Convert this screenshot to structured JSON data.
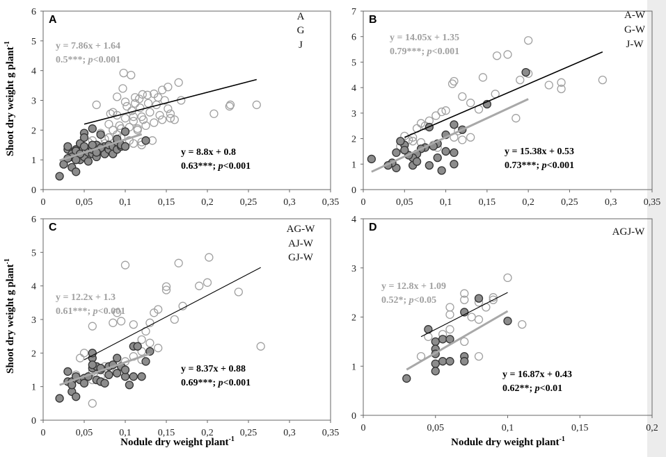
{
  "figure": {
    "y_label": "Shoot dry weight g plant",
    "y_label_sup": "-1",
    "x_label": "Nodule dry weight plant",
    "x_label_sup": "-1"
  },
  "colors": {
    "open_series": "#a0a0a0",
    "filled_series_fill": "#8c8c8c",
    "filled_series_stroke": "#333333",
    "open_fit_line": "#000000",
    "filled_fit_line": "#a8a8a8",
    "gray_text": "#a0a0a0",
    "black_text": "#000000"
  },
  "chart_data": [
    {
      "panel": "A",
      "type": "scatter",
      "legend": [
        "A",
        "G",
        "J"
      ],
      "xlim": [
        0,
        0.35
      ],
      "ylim": [
        0,
        6
      ],
      "x_ticks": [
        0,
        0.05,
        0.1,
        0.15,
        0.2,
        0.25,
        0.3,
        0.35
      ],
      "x_tick_labels": [
        "0",
        "0,05",
        "0,1",
        "0,15",
        "0,2",
        "0,25",
        "0,3",
        "0,35"
      ],
      "y_ticks": [
        0,
        1,
        2,
        3,
        4,
        5,
        6
      ],
      "y_tick_labels": [
        "0",
        "1",
        "2",
        "3",
        "4",
        "5",
        "6"
      ],
      "eq_open": {
        "line1": "y = 7.86x + 1.64",
        "line2_a": "0.5***; ",
        "line2_p": "p",
        "line2_b": "<0.001"
      },
      "eq_filled": {
        "line1": "y = 8.8x + 0.8",
        "line2_a": "0.63***; ",
        "line2_p": "p",
        "line2_b": "<0.001"
      },
      "fit_open": {
        "x": [
          0.05,
          0.26
        ],
        "y": [
          2.2,
          3.7
        ]
      },
      "fit_filled": {
        "x": [
          0.02,
          0.12
        ],
        "y": [
          0.98,
          1.86
        ]
      },
      "series": [
        {
          "name": "open",
          "x": [
            0.098,
            0.107,
            0.112,
            0.097,
            0.1,
            0.117,
            0.121,
            0.09,
            0.127,
            0.135,
            0.145,
            0.14,
            0.152,
            0.165,
            0.108,
            0.118,
            0.128,
            0.138,
            0.148,
            0.142,
            0.155,
            0.155,
            0.13,
            0.12,
            0.11,
            0.1,
            0.09,
            0.085,
            0.08,
            0.085,
            0.095,
            0.105,
            0.115,
            0.125,
            0.135,
            0.145,
            0.168,
            0.152,
            0.16,
            0.102,
            0.112,
            0.122,
            0.11,
            0.093,
            0.082,
            0.208,
            0.228,
            0.26,
            0.227,
            0.09,
            0.08,
            0.07,
            0.065,
            0.06,
            0.055,
            0.075,
            0.085,
            0.1,
            0.11,
            0.12,
            0.133,
            0.075,
            0.068,
            0.06,
            0.05,
            0.045,
            0.04,
            0.055,
            0.065,
            0.115,
            0.12,
            0.095,
            0.105
          ],
          "y": [
            3.92,
            3.85,
            3.1,
            3.4,
            2.95,
            3.05,
            3.2,
            3.12,
            3.18,
            3.22,
            3.35,
            3.1,
            3.45,
            3.6,
            2.65,
            2.75,
            2.9,
            2.85,
            3.0,
            2.5,
            2.55,
            2.4,
            2.6,
            2.45,
            2.3,
            2.4,
            2.5,
            2.6,
            2.2,
            2.0,
            2.05,
            2.1,
            2.0,
            2.15,
            2.25,
            2.35,
            3.0,
            2.72,
            2.35,
            2.8,
            2.9,
            2.35,
            2.45,
            2.15,
            2.55,
            2.55,
            2.85,
            2.85,
            2.8,
            1.85,
            1.75,
            1.9,
            2.85,
            1.65,
            1.6,
            1.7,
            1.55,
            1.45,
            1.55,
            1.6,
            1.65,
            1.55,
            1.45,
            1.4,
            1.3,
            1.2,
            1.1,
            1.35,
            1.5,
            2.05,
            1.5,
            1.75,
            1.65
          ]
        },
        {
          "name": "filled",
          "x": [
            0.02,
            0.025,
            0.03,
            0.03,
            0.035,
            0.035,
            0.04,
            0.04,
            0.045,
            0.045,
            0.05,
            0.05,
            0.055,
            0.055,
            0.06,
            0.06,
            0.06,
            0.065,
            0.065,
            0.07,
            0.07,
            0.075,
            0.075,
            0.08,
            0.08,
            0.085,
            0.085,
            0.09,
            0.09,
            0.095,
            0.095,
            0.1,
            0.1,
            0.04,
            0.05,
            0.045,
            0.035,
            0.03,
            0.06,
            0.07,
            0.125,
            0.09,
            0.05,
            0.065,
            0.04
          ],
          "y": [
            0.45,
            0.85,
            1.35,
            1.45,
            0.75,
            1.2,
            0.6,
            1.35,
            1.0,
            1.55,
            1.1,
            1.9,
            0.95,
            1.25,
            1.2,
            1.35,
            2.05,
            1.1,
            1.5,
            1.3,
            1.85,
            1.2,
            1.45,
            1.35,
            1.5,
            1.2,
            1.45,
            1.35,
            1.6,
            1.45,
            1.5,
            1.45,
            1.95,
            1.3,
            1.45,
            1.2,
            1.1,
            1.05,
            1.5,
            1.4,
            1.65,
            1.7,
            1.75,
            1.25,
            1.0
          ]
        }
      ]
    },
    {
      "panel": "B",
      "type": "scatter",
      "legend": [
        "A-W",
        "G-W",
        "J-W"
      ],
      "xlim": [
        0,
        0.35
      ],
      "ylim": [
        0,
        7
      ],
      "x_ticks": [
        0,
        0.05,
        0.1,
        0.15,
        0.2,
        0.25,
        0.3,
        0.35
      ],
      "x_tick_labels": [
        "0",
        "0,05",
        "0,1",
        "0,15",
        "0,2",
        "0,25",
        "0,3",
        "0,35"
      ],
      "y_ticks": [
        0,
        1,
        2,
        3,
        4,
        5,
        6,
        7
      ],
      "y_tick_labels": [
        "0",
        "1",
        "2",
        "3",
        "4",
        "5",
        "6",
        "7"
      ],
      "eq_open": {
        "line1": "y = 14.05x + 1.35",
        "line2_a": "0.79***; ",
        "line2_p": "p",
        "line2_b": "<0.001"
      },
      "eq_filled": {
        "line1": "y = 15.38x + 0.53",
        "line2_a": "0.73***; ",
        "line2_p": "p",
        "line2_b": "<0.001"
      },
      "fit_open": {
        "x": [
          0.05,
          0.29
        ],
        "y": [
          2.05,
          5.4
        ]
      },
      "fit_filled": {
        "x": [
          0.01,
          0.2
        ],
        "y": [
          0.7,
          3.55
        ]
      },
      "series": [
        {
          "name": "open",
          "x": [
            0.2,
            0.175,
            0.162,
            0.2,
            0.19,
            0.225,
            0.24,
            0.24,
            0.29,
            0.185,
            0.16,
            0.145,
            0.14,
            0.13,
            0.12,
            0.11,
            0.108,
            0.1,
            0.095,
            0.088,
            0.08,
            0.075,
            0.07,
            0.065,
            0.06,
            0.055,
            0.05,
            0.085,
            0.09,
            0.11,
            0.13,
            0.115,
            0.12,
            0.045,
            0.06,
            0.07
          ],
          "y": [
            5.85,
            5.3,
            5.25,
            4.55,
            4.3,
            4.1,
            4.2,
            3.95,
            4.3,
            2.8,
            3.75,
            4.4,
            3.15,
            3.4,
            3.65,
            4.25,
            4.15,
            3.1,
            3.05,
            2.9,
            2.7,
            2.5,
            2.6,
            2.4,
            2.05,
            1.95,
            2.1,
            1.75,
            1.65,
            2.05,
            2.05,
            2.3,
            1.95,
            1.7,
            1.9,
            1.85
          ]
        },
        {
          "name": "filled",
          "x": [
            0.197,
            0.15,
            0.12,
            0.11,
            0.1,
            0.09,
            0.085,
            0.08,
            0.075,
            0.07,
            0.065,
            0.06,
            0.055,
            0.05,
            0.05,
            0.045,
            0.04,
            0.04,
            0.035,
            0.03,
            0.01,
            0.06,
            0.065,
            0.08,
            0.095,
            0.11,
            0.11,
            0.1,
            0.09
          ],
          "y": [
            4.6,
            3.35,
            2.35,
            2.55,
            2.15,
            1.8,
            1.7,
            2.45,
            1.65,
            1.6,
            1.4,
            1.25,
            1.35,
            1.75,
            1.55,
            1.9,
            1.45,
            0.85,
            1.05,
            0.95,
            1.2,
            0.95,
            1.1,
            0.95,
            0.75,
            1.0,
            1.45,
            1.5,
            1.25
          ]
        }
      ]
    },
    {
      "panel": "C",
      "type": "scatter",
      "legend": [
        "AG-W",
        "AJ-W",
        "GJ-W"
      ],
      "xlim": [
        0,
        0.35
      ],
      "ylim": [
        0,
        6
      ],
      "x_ticks": [
        0,
        0.05,
        0.1,
        0.15,
        0.2,
        0.25,
        0.3,
        0.35
      ],
      "x_tick_labels": [
        "0",
        "0,05",
        "0,1",
        "0,15",
        "0,2",
        "0,25",
        "0,3",
        "0,35"
      ],
      "y_ticks": [
        0,
        1,
        2,
        3,
        4,
        5,
        6
      ],
      "y_tick_labels": [
        "0",
        "1",
        "2",
        "3",
        "4",
        "5",
        "6"
      ],
      "eq_open": {
        "line1": "y = 12.2x + 1.3",
        "line2_a": "0.61***; ",
        "line2_p": "p",
        "line2_b": "<0.001"
      },
      "eq_filled": {
        "line1": "y = 8.37x + 0.88",
        "line2_a": "0.69***; ",
        "line2_p": "p",
        "line2_b": "<0.001"
      },
      "fit_open": {
        "x": [
          0.05,
          0.265
        ],
        "y": [
          1.8,
          4.55
        ]
      },
      "fit_filled": {
        "x": [
          0.02,
          0.13
        ],
        "y": [
          1.05,
          1.98
        ]
      },
      "series": [
        {
          "name": "open",
          "x": [
            0.1,
            0.165,
            0.202,
            0.2,
            0.19,
            0.15,
            0.15,
            0.14,
            0.135,
            0.13,
            0.11,
            0.09,
            0.085,
            0.095,
            0.16,
            0.17,
            0.238,
            0.265,
            0.06,
            0.125,
            0.12,
            0.13,
            0.14,
            0.12,
            0.11,
            0.1,
            0.09,
            0.085,
            0.075,
            0.07,
            0.065,
            0.06,
            0.05,
            0.045,
            0.04,
            0.06,
            0.06,
            0.07,
            0.08,
            0.09,
            0.12
          ],
          "y": [
            4.62,
            4.68,
            4.85,
            4.1,
            4.0,
            3.98,
            3.88,
            3.3,
            3.2,
            2.9,
            2.85,
            3.2,
            2.9,
            2.95,
            3.0,
            3.4,
            3.82,
            2.2,
            2.8,
            2.65,
            2.4,
            2.3,
            2.15,
            2.05,
            1.9,
            1.75,
            1.7,
            1.65,
            1.6,
            1.55,
            1.5,
            1.45,
            2.0,
            1.85,
            1.35,
            0.5,
            1.2,
            1.3,
            1.45,
            1.55,
            1.8
          ]
        },
        {
          "name": "filled",
          "x": [
            0.02,
            0.03,
            0.03,
            0.035,
            0.035,
            0.04,
            0.045,
            0.05,
            0.055,
            0.06,
            0.06,
            0.06,
            0.065,
            0.065,
            0.07,
            0.07,
            0.075,
            0.08,
            0.085,
            0.09,
            0.09,
            0.095,
            0.1,
            0.105,
            0.11,
            0.115,
            0.12,
            0.125,
            0.13,
            0.06,
            0.07,
            0.08,
            0.1,
            0.11,
            0.05,
            0.04,
            0.035
          ],
          "y": [
            0.65,
            1.15,
            1.45,
            0.85,
            1.15,
            0.7,
            1.2,
            1.25,
            1.3,
            1.55,
            1.85,
            2.0,
            1.2,
            1.6,
            1.5,
            1.15,
            1.1,
            1.6,
            1.65,
            1.4,
            1.85,
            1.6,
            1.3,
            1.05,
            2.2,
            2.2,
            1.3,
            1.75,
            2.05,
            1.65,
            1.55,
            1.35,
            1.5,
            1.3,
            1.1,
            1.3,
            1.05
          ]
        }
      ]
    },
    {
      "panel": "D",
      "type": "scatter",
      "legend": [
        "AGJ-W"
      ],
      "xlim": [
        0,
        0.2
      ],
      "ylim": [
        0,
        4
      ],
      "x_ticks": [
        0,
        0.05,
        0.1,
        0.15,
        0.2
      ],
      "x_tick_labels": [
        "0",
        "0,05",
        "0,1",
        "0,15",
        "0,2"
      ],
      "y_ticks": [
        0,
        1,
        2,
        3,
        4
      ],
      "y_tick_labels": [
        "0",
        "1",
        "2",
        "3",
        "4"
      ],
      "eq_open": {
        "line1": "y = 12.8x + 1.09",
        "line2_a": "0.52*; ",
        "line2_p": "p",
        "line2_b": "<0.05"
      },
      "eq_filled": {
        "line1": "y = 16.87x + 0.43",
        "line2_a": "0.62**; ",
        "line2_p": "p",
        "line2_b": "<0.01"
      },
      "fit_open": {
        "x": [
          0.04,
          0.1
        ],
        "y": [
          1.6,
          2.5
        ]
      },
      "fit_filled": {
        "x": [
          0.03,
          0.1
        ],
        "y": [
          0.93,
          2.12
        ]
      },
      "series": [
        {
          "name": "open",
          "x": [
            0.1,
            0.07,
            0.07,
            0.08,
            0.09,
            0.09,
            0.085,
            0.06,
            0.06,
            0.08,
            0.075,
            0.11,
            0.04,
            0.045,
            0.06,
            0.07,
            0.08,
            0.055
          ],
          "y": [
            2.8,
            2.48,
            2.35,
            2.3,
            2.35,
            2.4,
            2.2,
            2.2,
            2.05,
            1.95,
            2.0,
            1.85,
            1.2,
            1.6,
            1.75,
            1.5,
            1.2,
            1.65
          ]
        },
        {
          "name": "filled",
          "x": [
            0.03,
            0.045,
            0.05,
            0.05,
            0.05,
            0.05,
            0.055,
            0.055,
            0.06,
            0.06,
            0.07,
            0.07,
            0.07,
            0.08,
            0.1,
            0.05
          ],
          "y": [
            0.75,
            1.75,
            1.5,
            1.35,
            1.25,
            1.05,
            1.55,
            1.1,
            1.55,
            1.1,
            2.1,
            1.2,
            1.1,
            2.38,
            1.92,
            0.9
          ]
        }
      ]
    }
  ]
}
